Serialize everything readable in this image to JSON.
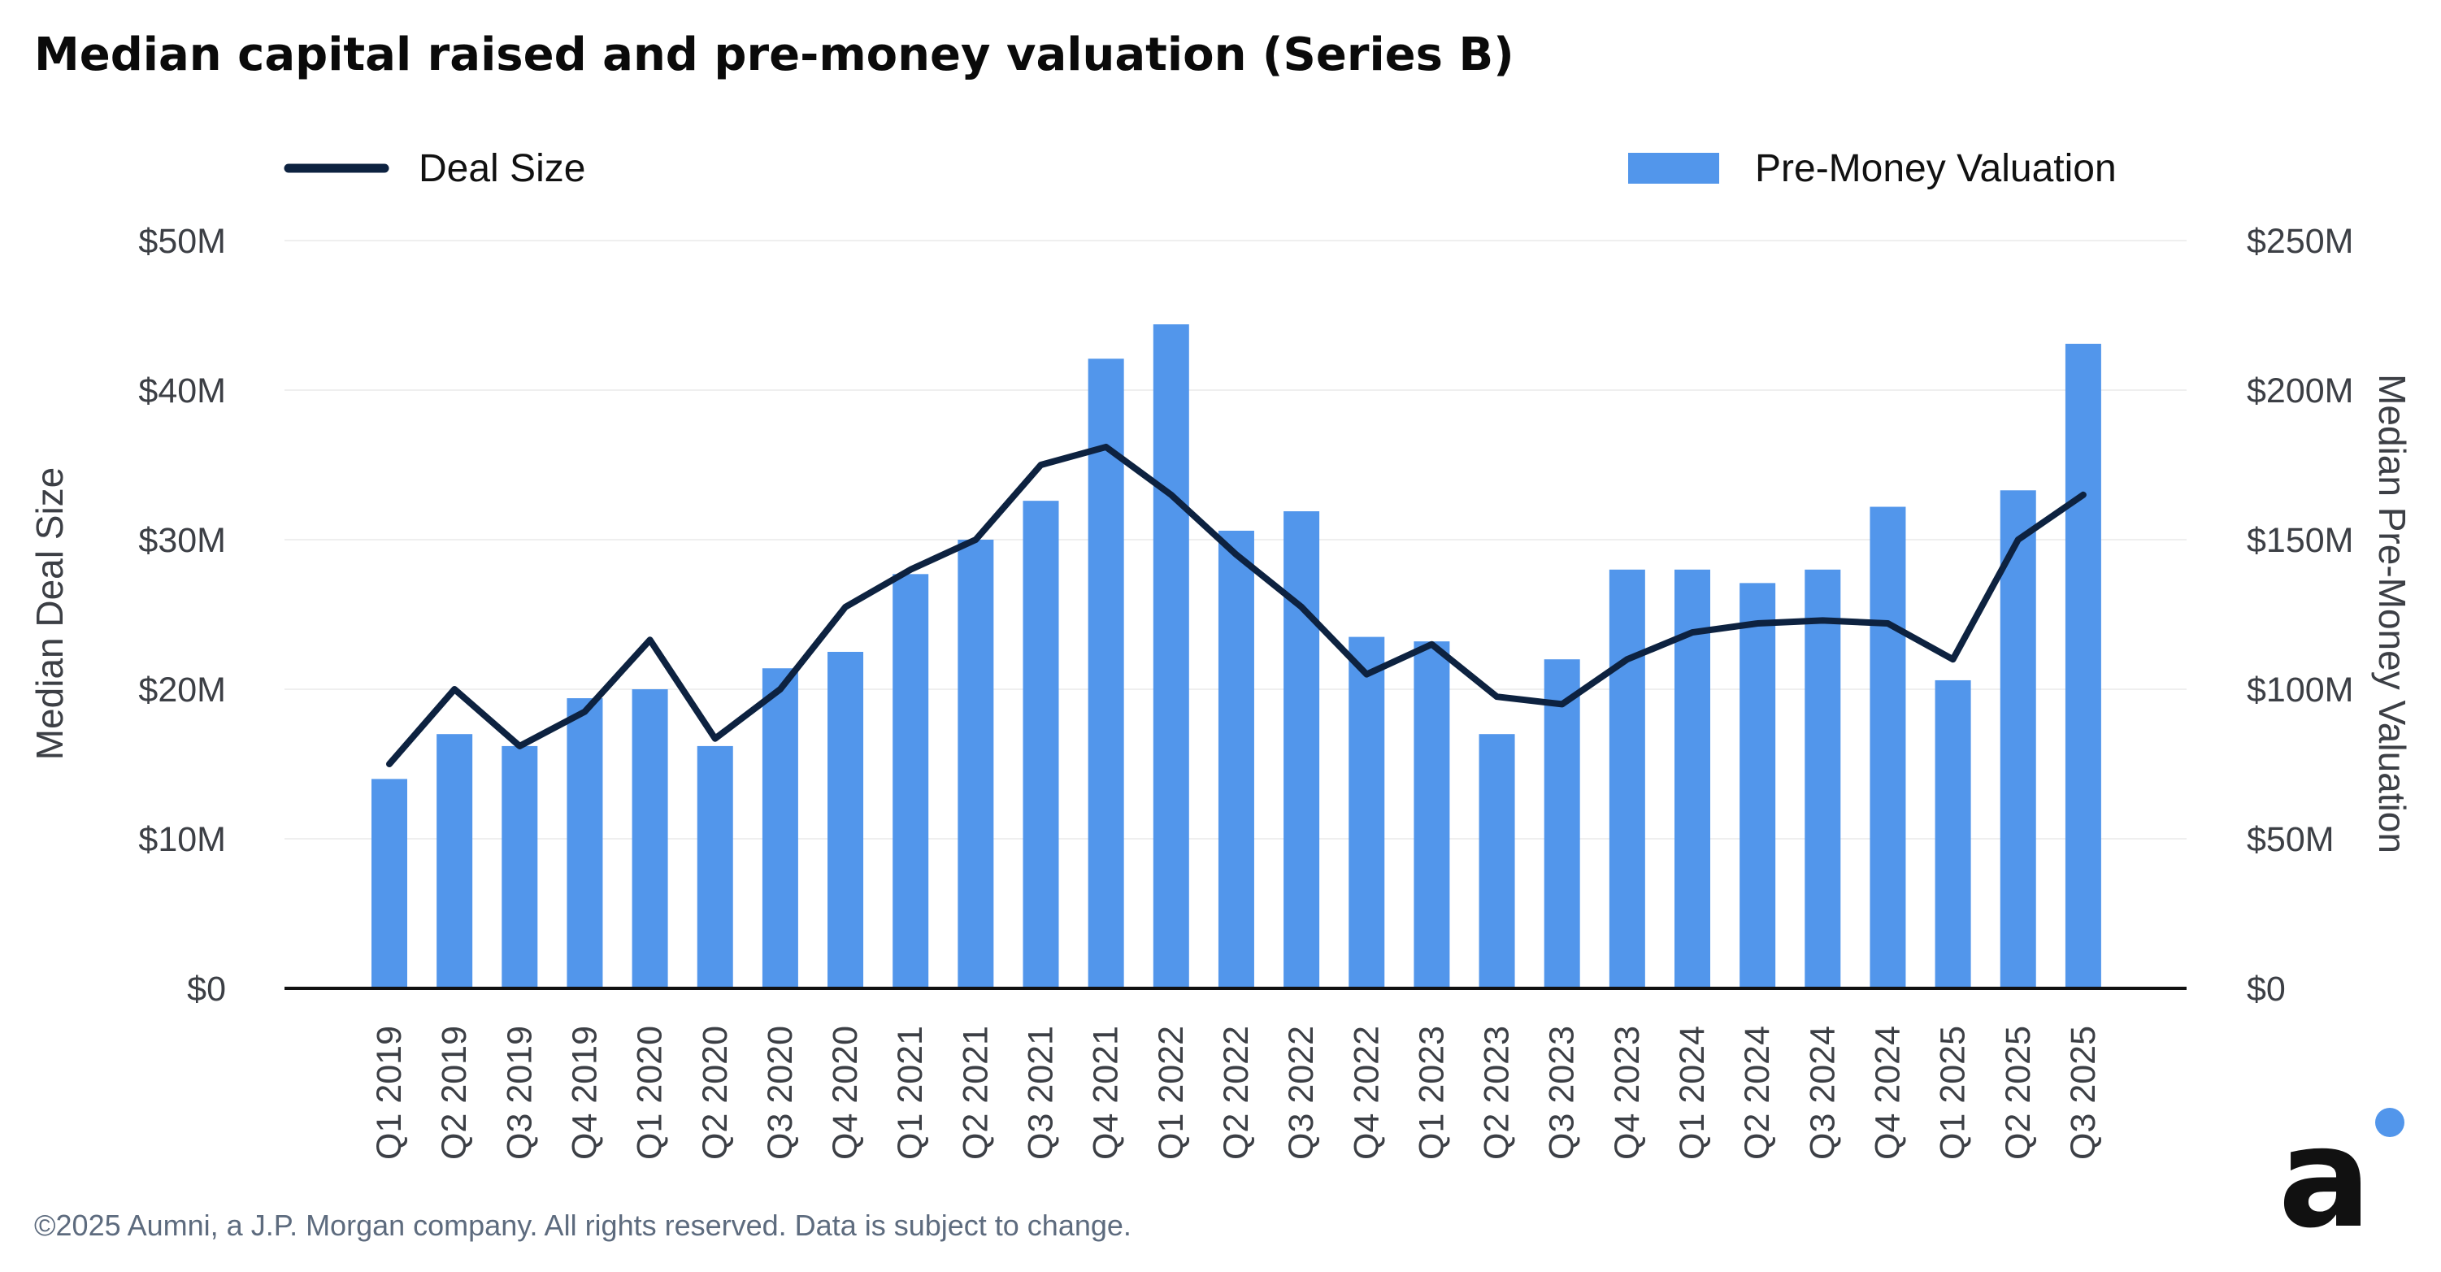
{
  "chart_data": {
    "type": "bar+line",
    "title": "Median capital raised and pre-money valuation (Series B)",
    "categories": [
      "Q1 2019",
      "Q2 2019",
      "Q3 2019",
      "Q4 2019",
      "Q1 2020",
      "Q2 2020",
      "Q3 2020",
      "Q4 2020",
      "Q1 2021",
      "Q2 2021",
      "Q3 2021",
      "Q4 2021",
      "Q1 2022",
      "Q2 2022",
      "Q3 2022",
      "Q4 2022",
      "Q1 2023",
      "Q2 2023",
      "Q3 2023",
      "Q4 2023",
      "Q1 2024",
      "Q2 2024",
      "Q3 2024",
      "Q4 2024",
      "Q1 2025",
      "Q2 2025",
      "Q3 2025"
    ],
    "series": [
      {
        "name": "Pre-Money Valuation",
        "type": "bar",
        "axis": "right",
        "color": "#5296EB",
        "values": [
          70,
          85,
          81,
          97,
          100,
          81,
          107,
          112.5,
          138.5,
          150,
          163,
          210.5,
          222,
          153,
          159.5,
          117.5,
          116,
          85,
          110,
          140,
          140,
          135.5,
          140,
          161,
          103,
          166.5,
          215.5
        ]
      },
      {
        "name": "Deal Size",
        "type": "line",
        "axis": "left",
        "color": "#0D2240",
        "values": [
          15,
          20,
          16.2,
          18.5,
          23.3,
          16.7,
          20,
          25.5,
          28,
          30,
          35,
          36.2,
          33,
          29,
          25.5,
          21,
          23,
          19.5,
          19,
          22,
          23.8,
          24.4,
          24.6,
          24.4,
          22,
          30,
          33
        ]
      }
    ],
    "y_left": {
      "label": "Median Deal Size",
      "range": [
        0,
        50
      ],
      "ticks": [
        0,
        10,
        20,
        30,
        40,
        50
      ],
      "tick_labels": [
        "$0",
        "$10M",
        "$20M",
        "$30M",
        "$40M",
        "$50M"
      ]
    },
    "y_right": {
      "label": "Median Pre-Money Valuation",
      "range": [
        0,
        250
      ],
      "ticks": [
        0,
        50,
        100,
        150,
        200,
        250
      ],
      "tick_labels": [
        "$0",
        "$50M",
        "$100M",
        "$150M",
        "$200M",
        "$250M"
      ]
    },
    "legend": {
      "placement": "top",
      "line_label": "Deal Size",
      "bar_label": "Pre-Money Valuation"
    },
    "grid": true
  },
  "footer": {
    "copyright": "©2025 Aumni, a J.P. Morgan company. All rights reserved. Data is subject to change.",
    "logo_letter": "a"
  },
  "colors": {
    "bar": "#5296EB",
    "line": "#0D2240",
    "axis_text": "#3C3F45",
    "grid": "#EFEFEF",
    "footer_text": "#5D6B7E",
    "logo_dot": "#5296EB",
    "logo": "#111111"
  }
}
